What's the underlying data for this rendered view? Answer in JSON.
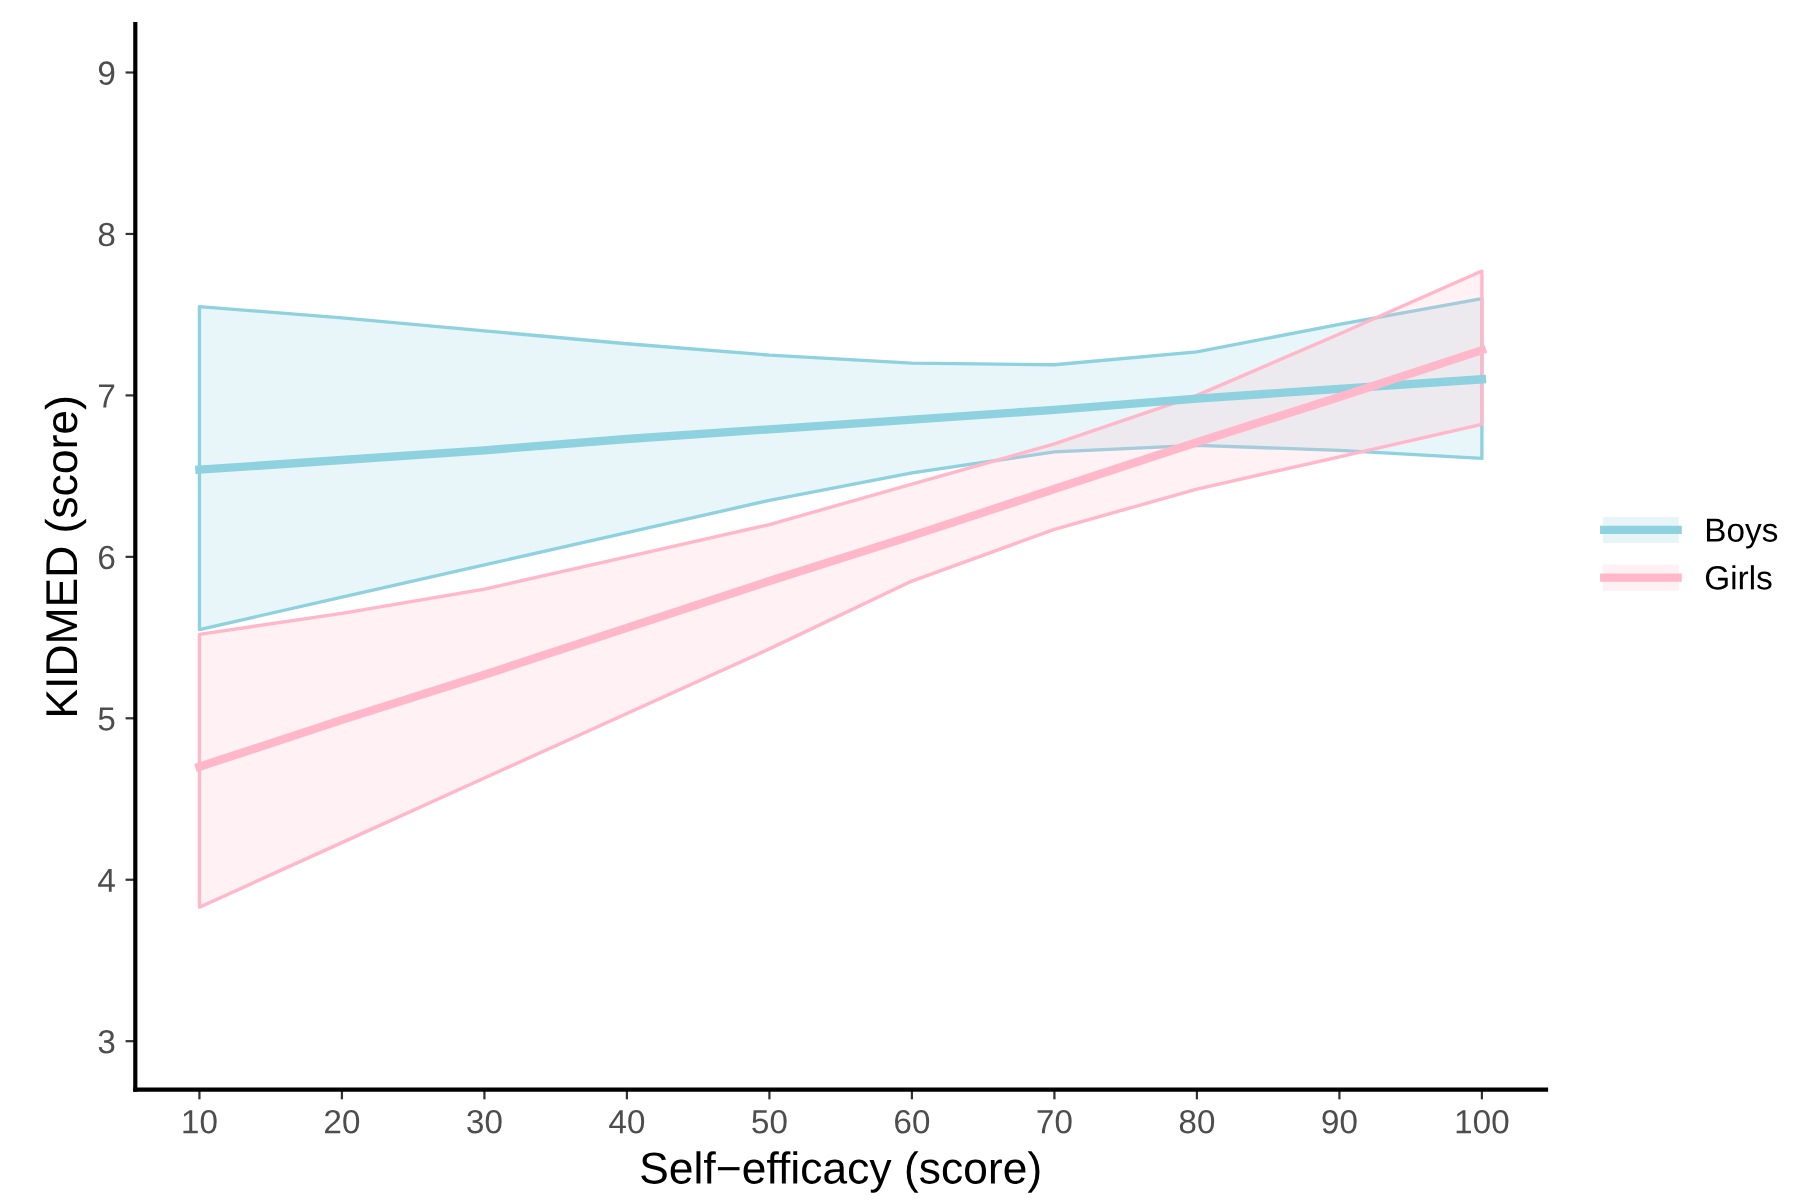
{
  "chart_data": {
    "type": "line",
    "xlabel": "Self−efficacy (score)",
    "ylabel": "KIDMED (score)",
    "x": [
      10,
      20,
      30,
      40,
      50,
      60,
      70,
      80,
      90,
      100
    ],
    "series": [
      {
        "name": "Boys",
        "color": "#8ed1df",
        "values": [
          6.54,
          6.6,
          6.66,
          6.73,
          6.79,
          6.85,
          6.91,
          6.98,
          7.04,
          7.1
        ],
        "lower": [
          5.55,
          5.75,
          5.95,
          6.15,
          6.35,
          6.52,
          6.65,
          6.69,
          6.66,
          6.61
        ],
        "upper": [
          7.55,
          7.48,
          7.4,
          7.32,
          7.25,
          7.2,
          7.19,
          7.27,
          7.44,
          7.6
        ]
      },
      {
        "name": "Girls",
        "color": "#ffb7c9",
        "values": [
          4.7,
          4.99,
          5.27,
          5.56,
          5.85,
          6.13,
          6.42,
          6.71,
          6.99,
          7.28
        ],
        "lower": [
          3.83,
          4.23,
          4.63,
          5.03,
          5.43,
          5.85,
          6.17,
          6.42,
          6.62,
          6.82
        ],
        "upper": [
          5.52,
          5.65,
          5.8,
          6.0,
          6.2,
          6.45,
          6.7,
          7.0,
          7.38,
          7.77
        ]
      }
    ],
    "xlim": [
      5.5,
      104.5
    ],
    "ylim": [
      2.7,
      9.3
    ],
    "xticks": [
      10,
      20,
      30,
      40,
      50,
      60,
      70,
      80,
      90,
      100
    ],
    "yticks": [
      3,
      4,
      5,
      6,
      7,
      8,
      9
    ],
    "grid": false,
    "legend": "right",
    "marker": "none",
    "line_style": "solid"
  }
}
